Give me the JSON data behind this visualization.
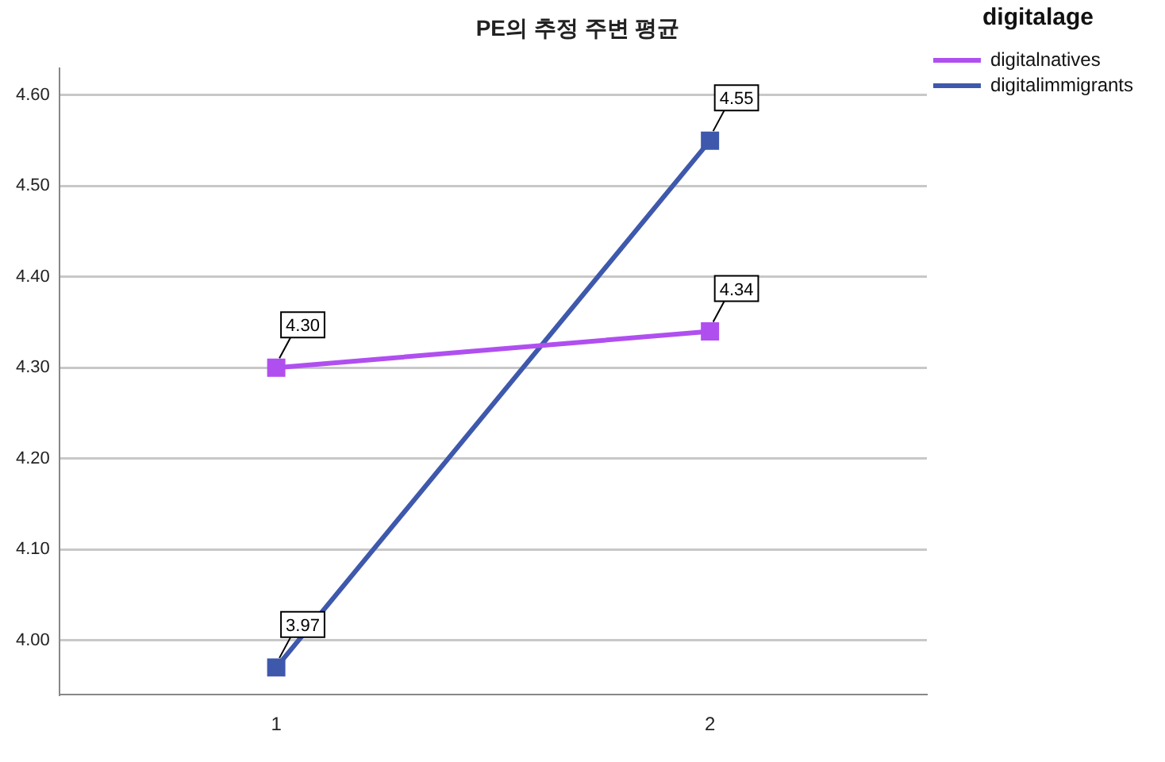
{
  "chart_data": {
    "type": "line",
    "title": "PE의 추정 주변 평균",
    "legend_title": "digitalage",
    "categories": [
      "1",
      "2"
    ],
    "series": [
      {
        "name": "digitalnatives",
        "color": "#b04ff0",
        "values": [
          4.3,
          4.34
        ],
        "value_labels": [
          "4.30",
          "4.34"
        ]
      },
      {
        "name": "digitalimmigrants",
        "color": "#3e58ac",
        "values": [
          3.97,
          4.55
        ],
        "value_labels": [
          "3.97",
          "4.55"
        ]
      }
    ],
    "ylim": [
      3.94,
      4.63
    ],
    "yticks": [
      {
        "value": 4,
        "label": "4.00"
      },
      {
        "value": 4.1,
        "label": "4.10"
      },
      {
        "value": 4.2,
        "label": "4.20"
      },
      {
        "value": 4.3,
        "label": "4.30"
      },
      {
        "value": 4.4,
        "label": "4.40"
      },
      {
        "value": 4.5,
        "label": "4.50"
      },
      {
        "value": 4.6,
        "label": "4.60"
      }
    ],
    "grid": "y",
    "legend": "top right",
    "marker": "square",
    "line_style": "solid"
  }
}
